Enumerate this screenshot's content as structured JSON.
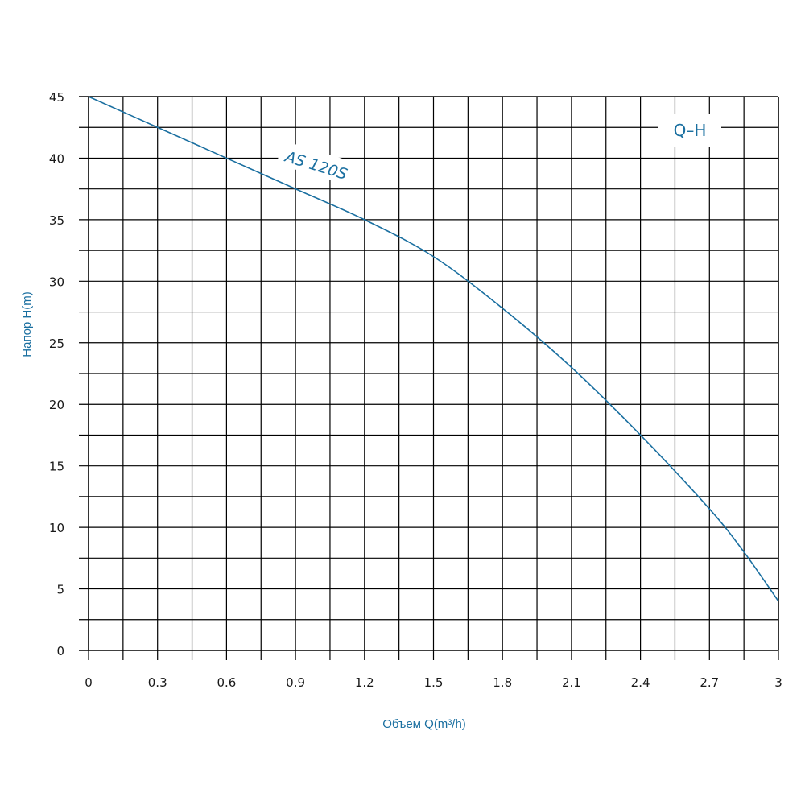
{
  "chart_data": {
    "type": "line",
    "xlabel": "Объем Q(m³/h)",
    "ylabel": "Напор H(m)",
    "xlim": [
      0,
      3
    ],
    "ylim": [
      0,
      45
    ],
    "x_ticks": [
      "0",
      "0.3",
      "0.6",
      "0.9",
      "1.2",
      "1.5",
      "1.8",
      "2.1",
      "2.4",
      "2.7",
      "3"
    ],
    "y_ticks": [
      "0",
      "5",
      "10",
      "15",
      "20",
      "25",
      "30",
      "35",
      "40",
      "45"
    ],
    "grid": true,
    "legend_label": "Q–H",
    "legend_position": "top-right",
    "series": [
      {
        "name": "AS 120S",
        "color": "#1a6fa0",
        "x": [
          0,
          0.3,
          0.6,
          0.9,
          1.2,
          1.5,
          1.8,
          2.1,
          2.4,
          2.7,
          2.85,
          3.0
        ],
        "y": [
          45,
          42.5,
          40,
          37.5,
          35,
          32,
          27.8,
          23,
          17.5,
          11.5,
          8,
          4
        ]
      }
    ]
  }
}
